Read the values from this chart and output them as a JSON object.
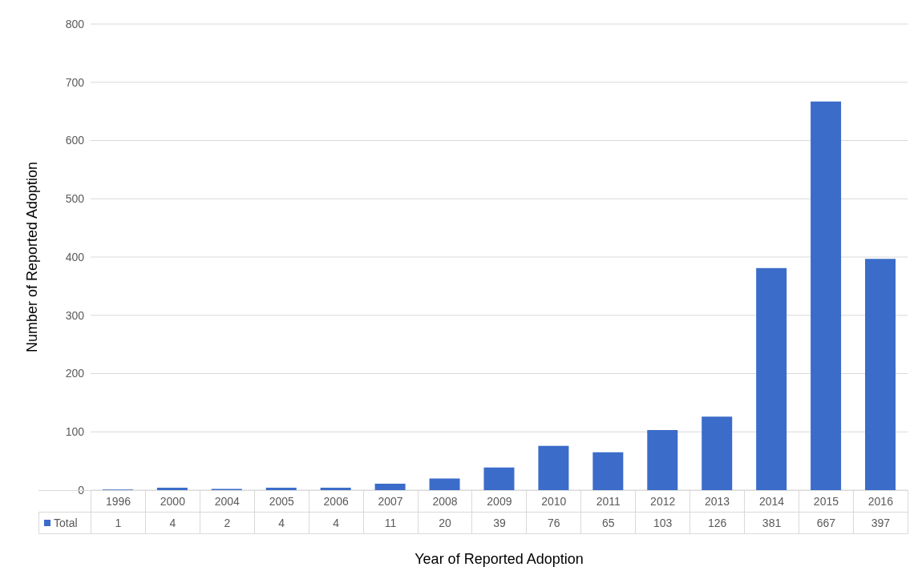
{
  "chart_data": {
    "type": "bar",
    "xlabel": "Year of Reported Adoption",
    "ylabel": "Number of Reported Adoption",
    "categories": [
      "1996",
      "2000",
      "2004",
      "2005",
      "2006",
      "2007",
      "2008",
      "2009",
      "2010",
      "2011",
      "2012",
      "2013",
      "2014",
      "2015",
      "2016"
    ],
    "series": [
      {
        "name": "Total",
        "color": "#3b6cc9",
        "values": [
          1,
          4,
          2,
          4,
          4,
          11,
          20,
          39,
          76,
          65,
          103,
          126,
          381,
          667,
          397
        ]
      }
    ],
    "ylim": [
      0,
      800
    ],
    "yticks": [
      0,
      100,
      200,
      300,
      400,
      500,
      600,
      700,
      800
    ],
    "grid": "y",
    "legend": "bottom",
    "data_labels": true
  }
}
